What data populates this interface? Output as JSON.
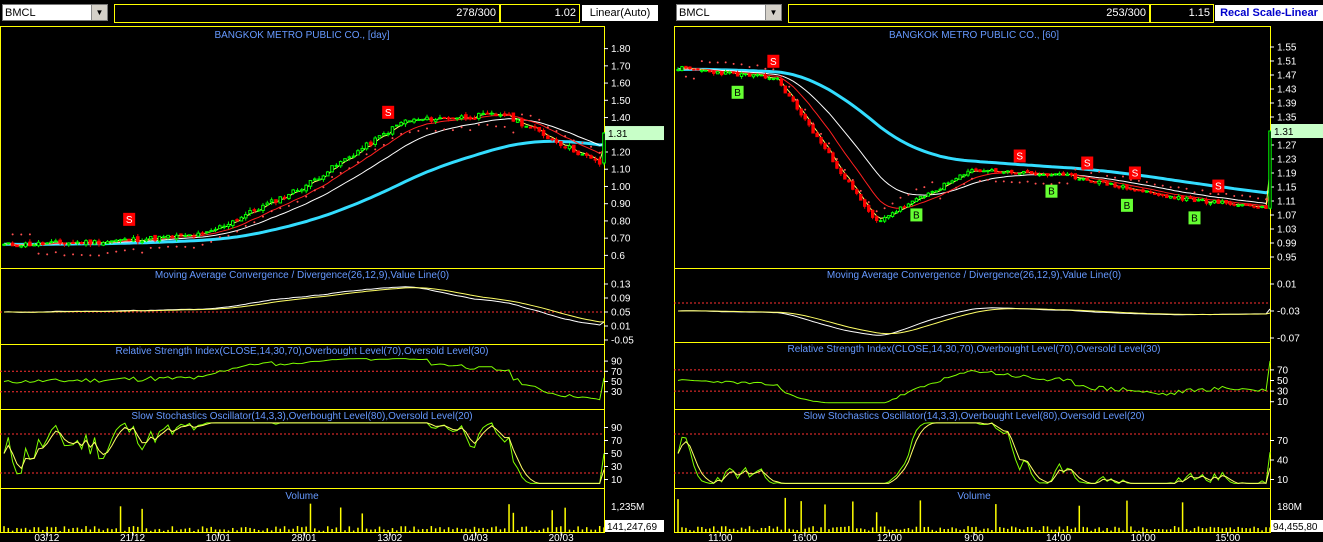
{
  "left": {
    "symbol": "BMCL",
    "count": "278/300",
    "value": "1.02",
    "scale_label": "Linear(Auto)",
    "main_title": "BANGKOK METRO PUBLIC CO., [day]",
    "last_price": "1.31",
    "price_ticks": [
      "1.80",
      "1.70",
      "1.60",
      "1.50",
      "1.40",
      "1.30",
      "1.20",
      "1.10",
      "1.00",
      "0.90",
      "0.80",
      "0.70",
      "0.6"
    ],
    "macd_title": "Moving Average Convergence / Divergence(26,12,9),Value Line(0)",
    "macd_ticks": [
      "0.13",
      "0.09",
      "0.05",
      "0.01",
      "-0.05"
    ],
    "rsi_title": "Relative Strength Index(CLOSE,14,30,70),Overbought Level(70),Oversold Level(30)",
    "rsi_ticks": [
      "90",
      "70",
      "50",
      "30"
    ],
    "stoch_title": "Slow Stochastics Oscillator(14,3,3),Overbought Level(80),Oversold Level(20)",
    "stoch_ticks": [
      "90",
      "70",
      "50",
      "30",
      "10"
    ],
    "vol_title": "Volume",
    "vol_tick": "1,235M",
    "vol_last": "141,247,69",
    "dates": [
      "03/12",
      "21/12",
      "10/01",
      "28/01",
      "13/02",
      "04/03",
      "20/03"
    ]
  },
  "right": {
    "symbol": "BMCL",
    "count": "253/300",
    "value": "1.15",
    "scale_label": "Recal Scale-Linear",
    "main_title": "BANGKOK METRO PUBLIC CO., [60]",
    "last_price": "1.31",
    "price_ticks": [
      "1.55",
      "1.51",
      "1.47",
      "1.43",
      "1.39",
      "1.35",
      "1.31",
      "1.27",
      "1.23",
      "1.19",
      "1.15",
      "1.11",
      "1.07",
      "1.03",
      "0.99",
      "0.95"
    ],
    "macd_title": "Moving Average Convergence / Divergence(26,12,9),Value Line(0)",
    "macd_ticks": [
      "0.01",
      "-0.03",
      "-0.07"
    ],
    "rsi_title": "Relative Strength Index(CLOSE,14,30,70),Overbought Level(70),Oversold Level(30)",
    "rsi_ticks": [
      "70",
      "50",
      "30",
      "10"
    ],
    "stoch_title": "Slow Stochastics Oscillator(14,3,3),Overbought Level(80),Oversold Level(20)",
    "stoch_ticks": [
      "70",
      "40",
      "10"
    ],
    "vol_title": "Volume",
    "vol_tick": "180M",
    "vol_last": "94,455,80",
    "dates": [
      "11:00",
      "16:00",
      "12:00",
      "9:00",
      "14:00",
      "10:00",
      "15:00"
    ]
  },
  "colors": {
    "panel_border": "#ffff00",
    "title": "#6699ff",
    "ma_long": "#33ddff",
    "sar": "#ff5050",
    "up": "#00ff00",
    "down": "#ff0000",
    "signal": "#ffff66",
    "line": "#7fff00"
  },
  "chart_data": [
    {
      "type": "line",
      "title": "BANGKOK METRO PUBLIC CO., [day]",
      "x": [
        "03/12",
        "21/12",
        "10/01",
        "28/01",
        "13/02",
        "04/03",
        "20/03"
      ],
      "series": [
        {
          "values": [
            0.66,
            0.68,
            0.72,
            1.0,
            1.38,
            1.42,
            1.12
          ]
        }
      ],
      "ylim": [
        0.55,
        1.85
      ],
      "last_value": 1.31
    },
    {
      "type": "line",
      "title": "BANGKOK METRO PUBLIC CO., [60]",
      "x": [
        "11:00",
        "16:00",
        "12:00",
        "9:00",
        "14:00",
        "10:00",
        "15:00"
      ],
      "series": [
        {
          "values": [
            1.49,
            1.46,
            1.05,
            1.2,
            1.18,
            1.12,
            1.09
          ]
        }
      ],
      "ylim": [
        0.93,
        1.57
      ],
      "last_value": 1.31
    }
  ]
}
